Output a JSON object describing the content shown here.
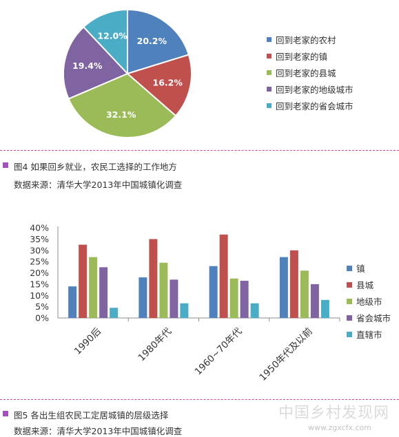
{
  "chart_data": [
    {
      "type": "pie",
      "labels": [
        "回到老家的农村",
        "回到老家的镇",
        "回到老家的县城",
        "回到老家的地级城市",
        "回到老家的省会城市"
      ],
      "values": [
        20.2,
        16.2,
        32.1,
        19.4,
        12.0
      ],
      "value_labels": [
        "20.2%",
        "16.2%",
        "32.1%",
        "19.4%",
        "12.0%"
      ],
      "colors": [
        "#4f81bd",
        "#c0504d",
        "#9bbb59",
        "#8064a2",
        "#4bacc6"
      ],
      "legend_position": "right"
    },
    {
      "type": "bar",
      "categories": [
        "1990后",
        "1980年代",
        "1960~70年代",
        "1950年代及以前"
      ],
      "series": [
        {
          "name": "镇",
          "values": [
            14,
            18,
            23,
            27
          ],
          "color": "#4f81bd"
        },
        {
          "name": "县城",
          "values": [
            32.5,
            35,
            37,
            30
          ],
          "color": "#c0504d"
        },
        {
          "name": "地级市",
          "values": [
            27,
            24.5,
            17.5,
            21
          ],
          "color": "#9bbb59"
        },
        {
          "name": "省会城市",
          "values": [
            22.5,
            17,
            16.5,
            15
          ],
          "color": "#8064a2"
        },
        {
          "name": "直辖市",
          "values": [
            4.5,
            6.5,
            6.5,
            8
          ],
          "color": "#4bacc6"
        }
      ],
      "ylim": [
        0,
        40
      ],
      "yticks": [
        "0%",
        "5%",
        "10%",
        "15%",
        "20%",
        "25%",
        "30%",
        "35%",
        "40%"
      ],
      "legend_position": "right",
      "grid": false
    }
  ],
  "captions": {
    "fig4_title": "图4 如果回乡就业，农民工选择的工作地方",
    "fig4_source": "数据来源：清华大学2013年中国城镇化调查",
    "fig5_title": "图5 各出生组农民工定居城镇的层级选择",
    "fig5_source": "数据来源：清华大学2013年中国城镇化调查"
  },
  "watermark": {
    "text": "中国乡村发现网",
    "url": "www.zgxcfx.com"
  }
}
